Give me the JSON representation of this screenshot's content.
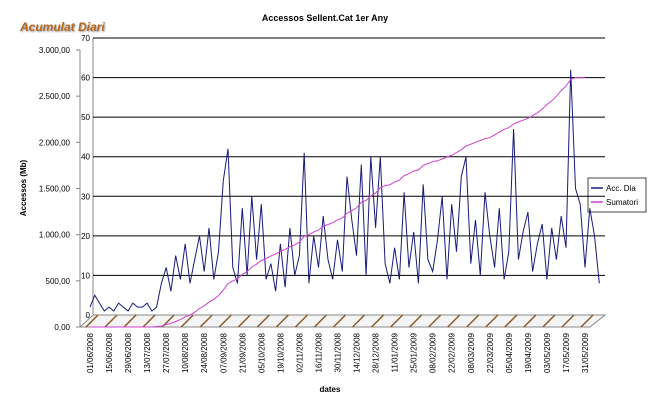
{
  "chart_data": {
    "type": "line",
    "badge": "Acumulat Diari",
    "title": "Accessos Sellent.Cat 1er Any",
    "x_label": "dates",
    "y_label": "Accessos (Mb)",
    "categories": [
      "01/06/2008",
      null,
      null,
      null,
      "15/06/2008",
      null,
      null,
      null,
      "29/06/2008",
      null,
      null,
      null,
      "13/07/2008",
      null,
      null,
      null,
      "27/07/2008",
      null,
      null,
      null,
      "10/08/2008",
      null,
      null,
      null,
      "24/08/2008",
      null,
      null,
      null,
      "07/09/2008",
      null,
      null,
      null,
      "21/09/2008",
      null,
      null,
      null,
      "05/10/2008",
      null,
      null,
      null,
      "19/10/2008",
      null,
      null,
      null,
      "02/11/2008",
      null,
      null,
      null,
      "16/11/2008",
      null,
      null,
      null,
      "30/11/2008",
      null,
      null,
      null,
      "14/12/2008",
      null,
      null,
      null,
      "28/12/2008",
      null,
      null,
      null,
      "11/01/2009",
      null,
      null,
      null,
      "25/01/2009",
      null,
      null,
      null,
      "08/02/2009",
      null,
      null,
      null,
      "22/02/2009",
      null,
      null,
      null,
      "08/03/2009",
      null,
      null,
      null,
      "22/03/2009",
      null,
      null,
      null,
      "05/04/2009",
      null,
      null,
      null,
      "19/04/2009",
      null,
      null,
      null,
      "03/05/2009",
      null,
      null,
      null,
      "17/05/2009",
      null,
      null,
      null,
      "31/05/2009",
      null,
      null,
      null
    ],
    "series": [
      {
        "name": "Acc. Dia",
        "color": "#1a1a7a",
        "axis": "y2",
        "values": [
          2,
          5,
          3,
          1,
          2,
          1,
          3,
          2,
          1,
          3,
          2,
          2,
          3,
          1,
          2,
          8,
          12,
          6,
          15,
          9,
          18,
          8,
          14,
          20,
          11,
          22,
          9,
          16,
          34,
          42,
          12,
          8,
          27,
          10,
          30,
          14,
          28,
          9,
          13,
          6,
          18,
          7,
          22,
          10,
          15,
          41,
          8,
          20,
          12,
          25,
          14,
          9,
          19,
          11,
          35,
          24,
          15,
          38,
          10,
          40,
          22,
          40,
          13,
          8,
          17,
          9,
          31,
          12,
          21,
          8,
          33,
          14,
          11,
          19,
          30,
          9,
          28,
          16,
          35,
          40,
          13,
          24,
          10,
          31,
          20,
          12,
          27,
          9,
          16,
          47,
          14,
          21,
          26,
          11,
          18,
          23,
          9,
          22,
          14,
          25,
          17,
          62,
          32,
          28,
          12,
          27,
          20,
          8
        ]
      },
      {
        "name": "Sumatori",
        "color": "#d040d0",
        "values": [
          0,
          0,
          0,
          0,
          0,
          0,
          0,
          0,
          0,
          0,
          0,
          0,
          0,
          0,
          5,
          10,
          25,
          40,
          60,
          80,
          110,
          130,
          160,
          200,
          230,
          270,
          300,
          340,
          400,
          470,
          500,
          520,
          570,
          600,
          650,
          680,
          720,
          740,
          770,
          790,
          820,
          840,
          870,
          890,
          920,
          980,
          1000,
          1030,
          1050,
          1090,
          1110,
          1130,
          1160,
          1180,
          1230,
          1260,
          1290,
          1350,
          1370,
          1420,
          1450,
          1510,
          1530,
          1540,
          1570,
          1590,
          1640,
          1660,
          1690,
          1700,
          1750,
          1770,
          1790,
          1800,
          1820,
          1840,
          1860,
          1890,
          1920,
          1960,
          1980,
          2000,
          2020,
          2040,
          2050,
          2080,
          2110,
          2140,
          2160,
          2200,
          2220,
          2240,
          2260,
          2290,
          2320,
          2360,
          2410,
          2450,
          2500,
          2560,
          2610,
          2680,
          2700,
          2700,
          2700,
          null,
          null,
          null
        ]
      }
    ],
    "ylim": [
      0,
      3000
    ],
    "yticks": [
      {
        "value": 0,
        "label": "0,00"
      },
      {
        "value": 500,
        "label": "500,00"
      },
      {
        "value": 1000,
        "label": "1.000,00"
      },
      {
        "value": 1500,
        "label": "1.500,00"
      },
      {
        "value": 2000,
        "label": "2.000,00"
      },
      {
        "value": 2500,
        "label": "2.500,00"
      },
      {
        "value": 3000,
        "label": "3.000,00"
      }
    ],
    "y2lim": [
      0,
      70
    ],
    "y2ticks": [
      0,
      10,
      20,
      30,
      40,
      50,
      60,
      70
    ],
    "grid": true
  }
}
